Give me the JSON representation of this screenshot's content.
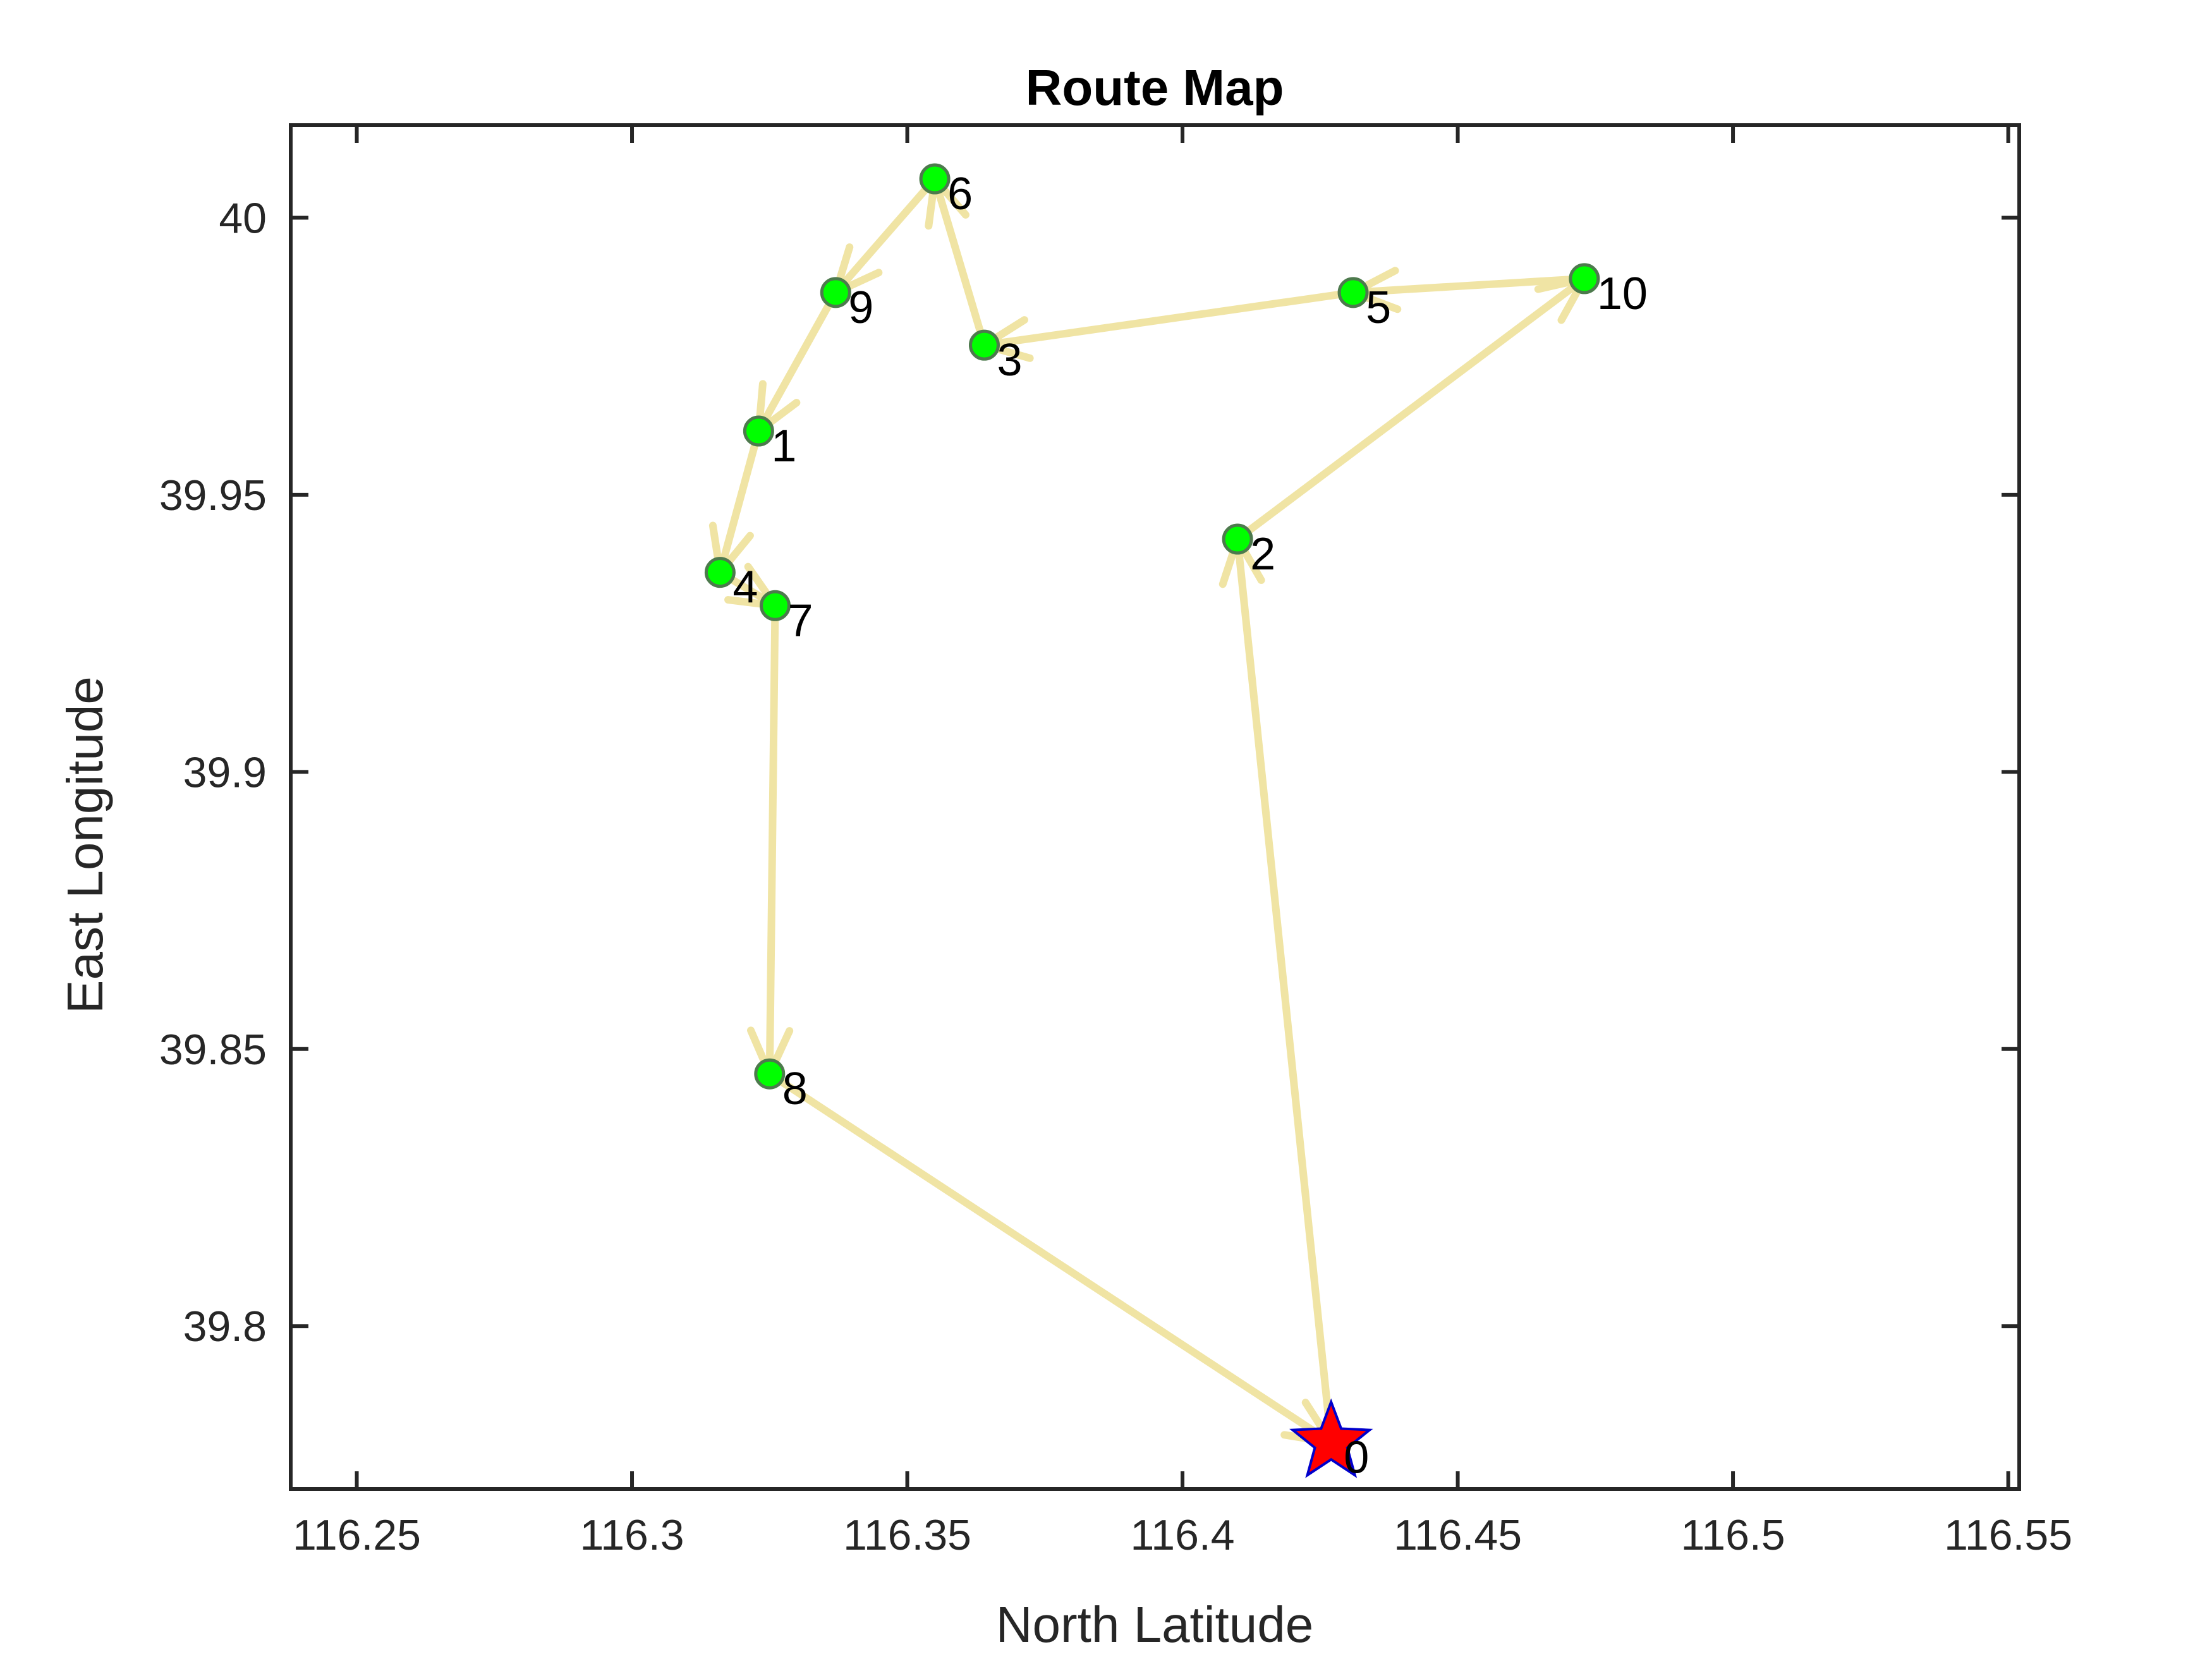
{
  "chart_data": {
    "type": "scatter",
    "title": "Route Map",
    "xlabel": "North Latitude",
    "ylabel": "East Longitude",
    "xlim": [
      116.238,
      116.552
    ],
    "ylim": [
      39.7706,
      40.0167
    ],
    "xticks": [
      {
        "value": 116.25,
        "label": "116.25"
      },
      {
        "value": 116.3,
        "label": "116.3"
      },
      {
        "value": 116.35,
        "label": "116.35"
      },
      {
        "value": 116.4,
        "label": "116.4"
      },
      {
        "value": 116.45,
        "label": "116.45"
      },
      {
        "value": 116.5,
        "label": "116.5"
      },
      {
        "value": 116.55,
        "label": "116.55"
      }
    ],
    "yticks": [
      {
        "value": 39.8,
        "label": "39.8"
      },
      {
        "value": 39.85,
        "label": "39.85"
      },
      {
        "value": 39.9,
        "label": "39.9"
      },
      {
        "value": 39.95,
        "label": "39.95"
      },
      {
        "value": 40.0,
        "label": "40"
      }
    ],
    "grid": false,
    "depot": {
      "label": "0",
      "x": 116.427,
      "y": 39.779
    },
    "nodes": [
      {
        "label": "1",
        "x": 116.323,
        "y": 39.9615
      },
      {
        "label": "2",
        "x": 116.41,
        "y": 39.942
      },
      {
        "label": "3",
        "x": 116.364,
        "y": 39.977
      },
      {
        "label": "4",
        "x": 116.316,
        "y": 39.936
      },
      {
        "label": "5",
        "x": 116.431,
        "y": 39.9865
      },
      {
        "label": "6",
        "x": 116.355,
        "y": 40.007
      },
      {
        "label": "7",
        "x": 116.326,
        "y": 39.93
      },
      {
        "label": "8",
        "x": 116.325,
        "y": 39.8455
      },
      {
        "label": "9",
        "x": 116.337,
        "y": 39.9865
      },
      {
        "label": "10",
        "x": 116.473,
        "y": 39.989
      }
    ],
    "route": [
      "0",
      "2",
      "10",
      "5",
      "3",
      "6",
      "9",
      "1",
      "4",
      "7",
      "8",
      "0"
    ],
    "colors": {
      "route": "#f0e4a4",
      "node_fill": "#00ff00",
      "node_edge": "#4d7a4d",
      "depot_fill": "#ff0000",
      "depot_edge": "#0000cc",
      "axes": "#262626"
    }
  }
}
